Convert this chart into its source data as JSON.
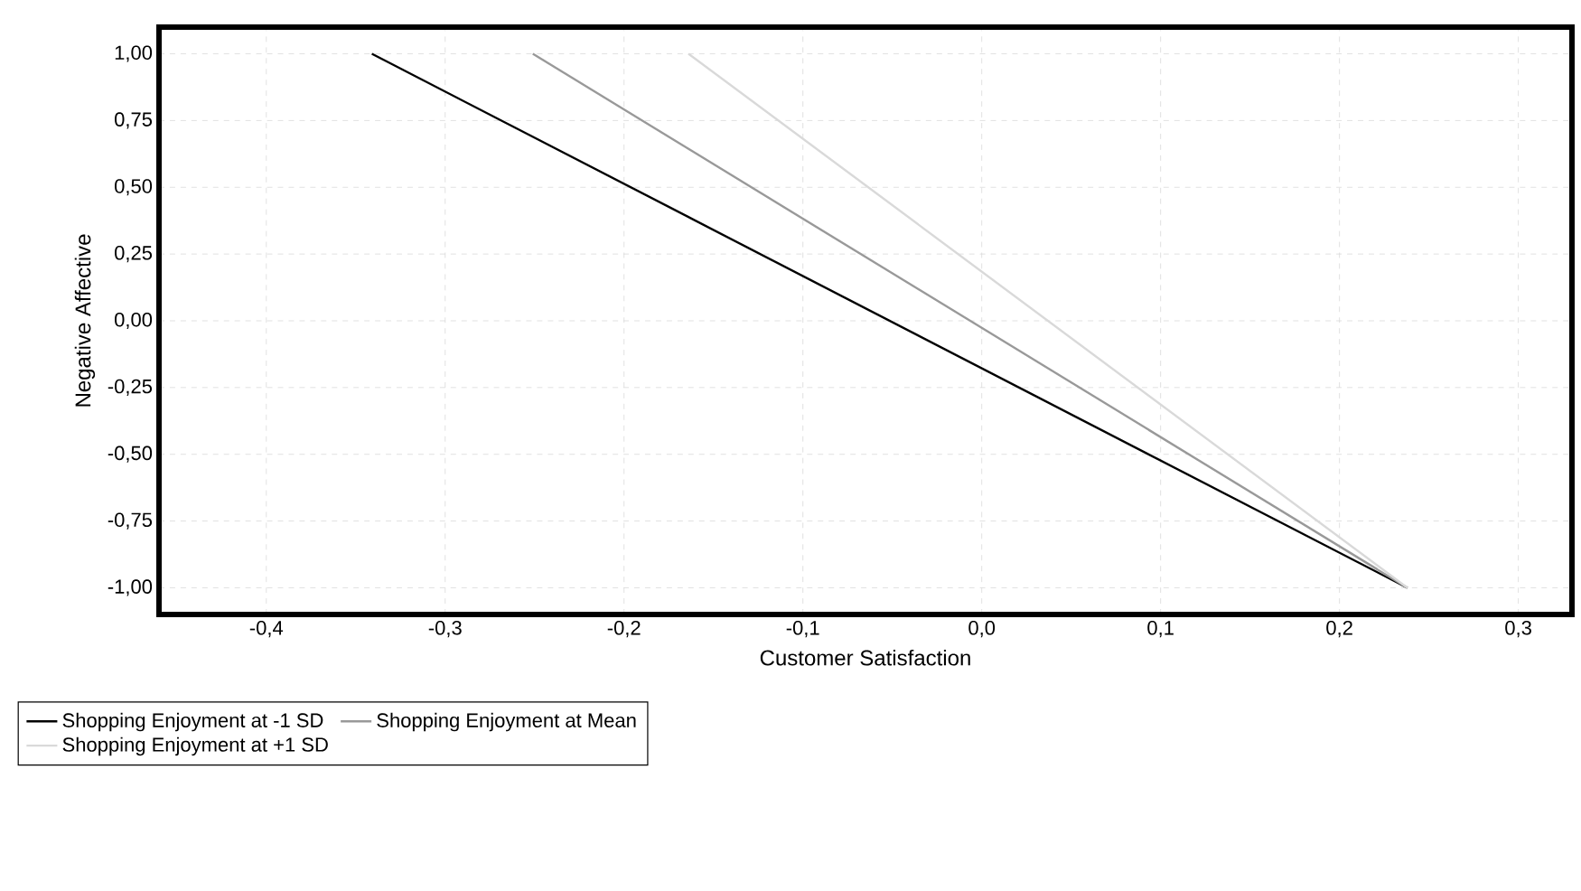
{
  "chart_data": {
    "type": "line",
    "xlabel": "Customer Satisfaction",
    "ylabel": "Negative Affective",
    "series": [
      {
        "name": "Shopping Enjoyment at -1 SD",
        "color": "#000000",
        "x": [
          -0.341,
          0.238
        ],
        "values": [
          1.0,
          -1.0
        ]
      },
      {
        "name": "Shopping Enjoyment at Mean",
        "color": "#999999",
        "x": [
          -0.251,
          0.238
        ],
        "values": [
          1.0,
          -1.0
        ]
      },
      {
        "name": "Shopping Enjoyment at +1 SD",
        "color": "#d9d9d9",
        "x": [
          -0.164,
          0.238
        ],
        "values": [
          1.0,
          -1.0
        ]
      }
    ],
    "xlim": [
      -0.46,
      0.33
    ],
    "ylim": [
      -1.1,
      1.1
    ],
    "xticks": [
      {
        "value": -0.4,
        "label": "-0,4"
      },
      {
        "value": -0.3,
        "label": "-0,3"
      },
      {
        "value": -0.2,
        "label": "-0,2"
      },
      {
        "value": -0.1,
        "label": "-0,1"
      },
      {
        "value": 0.0,
        "label": "0,0"
      },
      {
        "value": 0.1,
        "label": "0,1"
      },
      {
        "value": 0.2,
        "label": "0,2"
      },
      {
        "value": 0.3,
        "label": "0,3"
      }
    ],
    "yticks": [
      {
        "value": 1.0,
        "label": "1,00"
      },
      {
        "value": 0.75,
        "label": "0,75"
      },
      {
        "value": 0.5,
        "label": "0,50"
      },
      {
        "value": 0.25,
        "label": "0,25"
      },
      {
        "value": 0.0,
        "label": "0,00"
      },
      {
        "value": -0.25,
        "label": "-0,25"
      },
      {
        "value": -0.5,
        "label": "-0,50"
      },
      {
        "value": -0.75,
        "label": "-0,75"
      },
      {
        "value": -1.0,
        "label": "-1,00"
      }
    ],
    "grid": true,
    "legend": "bottom",
    "marker": "none",
    "line_style": "solid"
  }
}
